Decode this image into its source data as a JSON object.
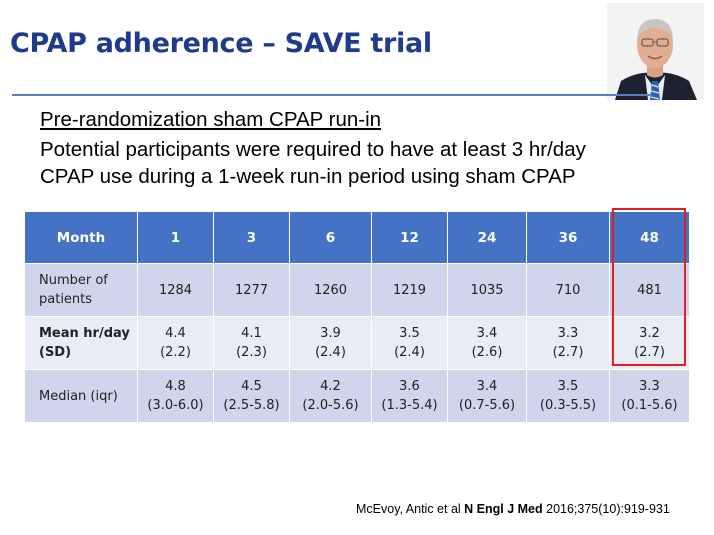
{
  "title": "CPAP adherence – SAVE trial",
  "subtitle": "Pre-randomization  sham CPAP run-in",
  "description_lines": [
    "Potential participants were required to have at least 3 hr/day",
    "CPAP use during a 1-week run-in period using sham CPAP"
  ],
  "table": {
    "header": [
      "Month",
      "1",
      "3",
      "6",
      "12",
      "24",
      "36",
      "48"
    ],
    "rows": [
      {
        "label": [
          "Number of",
          "patients"
        ],
        "cells": [
          [
            "1284"
          ],
          [
            "1277"
          ],
          [
            "1260"
          ],
          [
            "1219"
          ],
          [
            "1035"
          ],
          [
            "710"
          ],
          [
            "481"
          ]
        ]
      },
      {
        "label": [
          "Mean hr/day",
          "(SD)"
        ],
        "cells": [
          [
            "4.4",
            "(2.2)"
          ],
          [
            "4.1",
            "(2.3)"
          ],
          [
            "3.9",
            "(2.4)"
          ],
          [
            "3.5",
            "(2.4)"
          ],
          [
            "3.4",
            "(2.6)"
          ],
          [
            "3.3",
            "(2.7)"
          ],
          [
            "3.2",
            "(2.7)"
          ]
        ]
      },
      {
        "label": [
          "Median (iqr)"
        ],
        "cells": [
          [
            "4.8",
            "(3.0-6.0)"
          ],
          [
            "4.5",
            "(2.5-5.8)"
          ],
          [
            "4.2",
            "(2.0-5.6)"
          ],
          [
            "3.6",
            "(1.3-5.4)"
          ],
          [
            "3.4",
            "(0.7-5.6)"
          ],
          [
            "3.5",
            "(0.3-5.5)"
          ],
          [
            "3.3",
            "(0.1-5.6)"
          ]
        ]
      }
    ]
  },
  "citation": {
    "authors": "McEvoy, Antic et al ",
    "journal": "N Engl J Med",
    "ref": " 2016;375(10):919-931"
  },
  "colors": {
    "title": "#1f3b8c",
    "header_bg": "#4472c4",
    "row_odd": "#cfd5ea",
    "row_even": "#e9ebf5",
    "highlight": "#e31b23"
  }
}
